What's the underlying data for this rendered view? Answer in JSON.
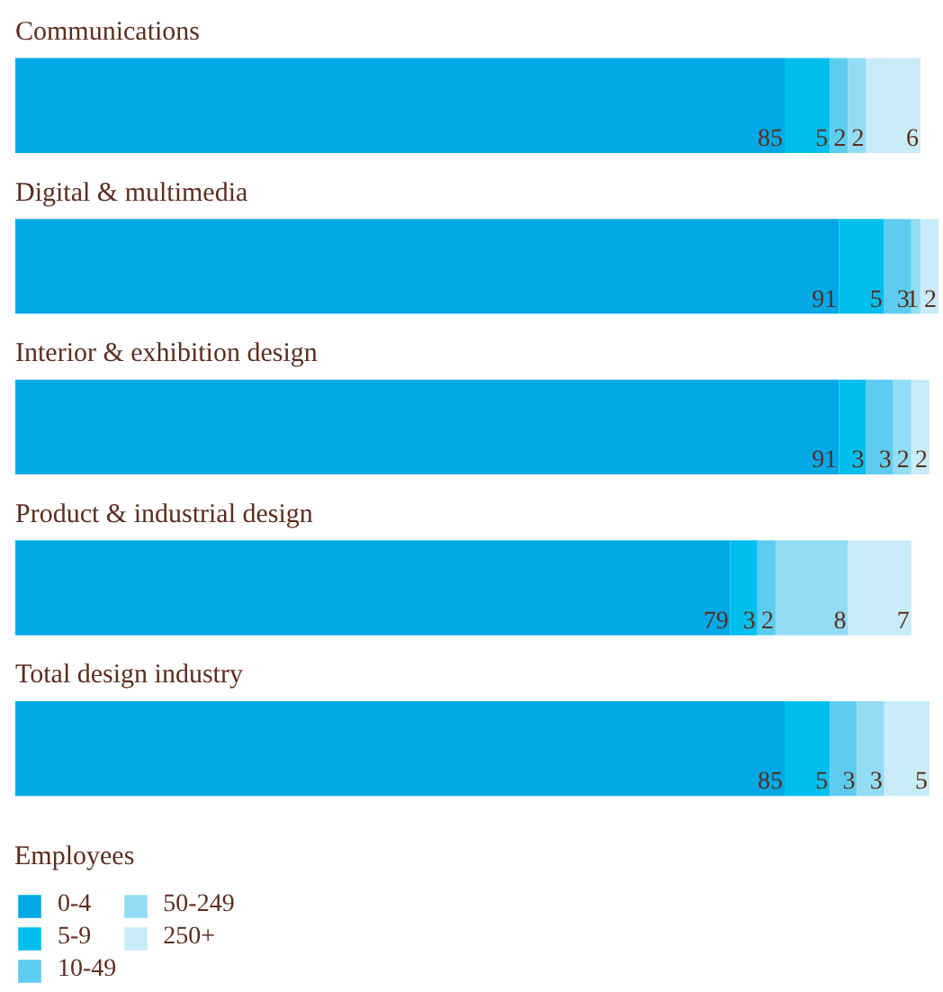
{
  "chart_data": {
    "type": "bar",
    "orientation": "horizontal",
    "stacked": true,
    "data_labels": true,
    "legend": "bottom left",
    "legend_title": "Employees",
    "categories": [
      "Communications",
      "Digital & multimedia",
      "Interior & exhibition design",
      "Product & industrial design",
      "Total design industry"
    ],
    "series": [
      {
        "name": "0-4",
        "color": "#00a9e6",
        "values": [
          85,
          91,
          91,
          79,
          85
        ]
      },
      {
        "name": "5-9",
        "color": "#00bfee",
        "values": [
          5,
          5,
          3,
          3,
          5
        ]
      },
      {
        "name": "10-49",
        "color": "#5ccdf0",
        "values": [
          2,
          3,
          3,
          2,
          3
        ]
      },
      {
        "name": "50-249",
        "color": "#92dcf4",
        "values": [
          2,
          1,
          2,
          8,
          3
        ]
      },
      {
        "name": "250+",
        "color": "#c8ecf8",
        "values": [
          6,
          2,
          2,
          7,
          5
        ]
      }
    ]
  }
}
